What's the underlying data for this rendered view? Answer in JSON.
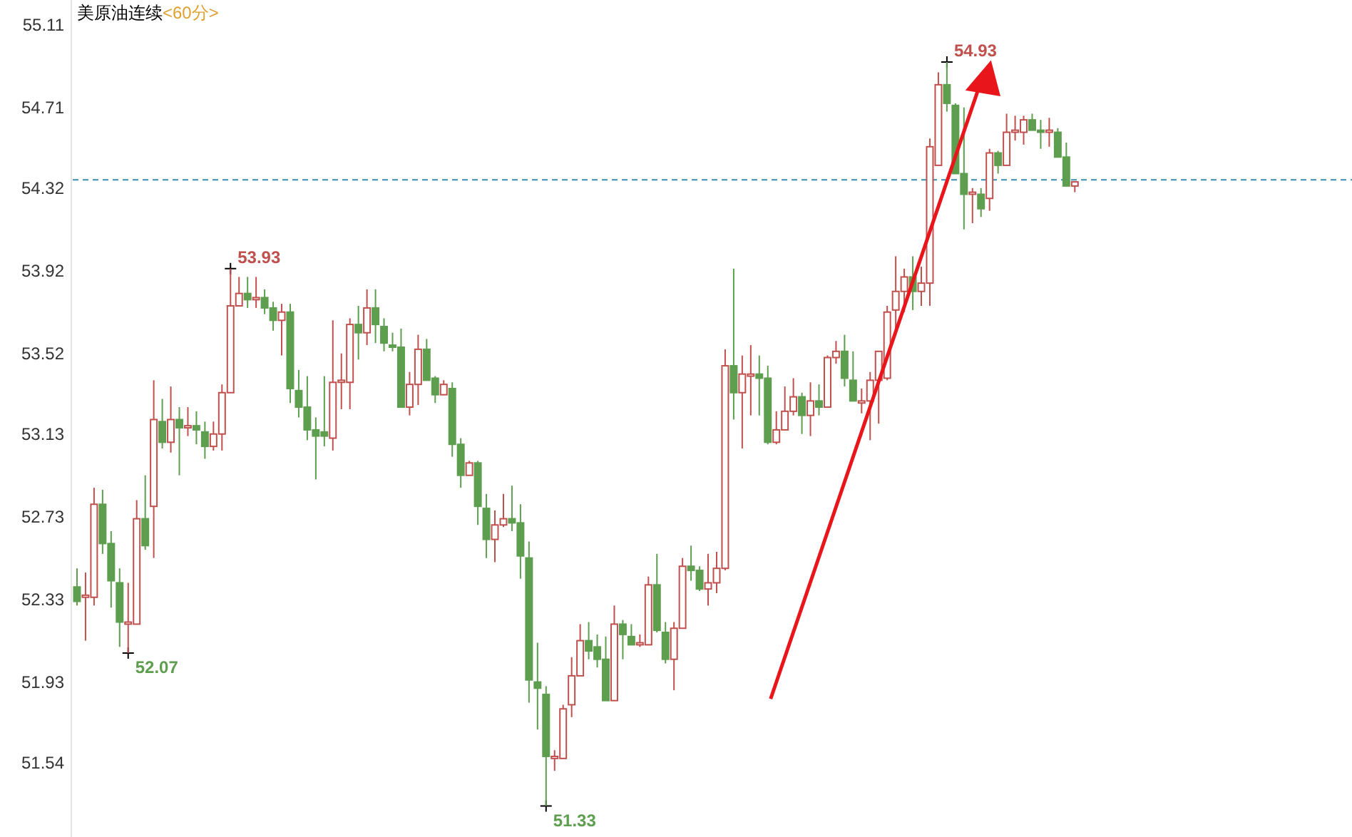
{
  "chart_data": {
    "type": "candlestick",
    "title": "美原油连续",
    "subtitle": "<60分>",
    "categories": [
      null,
      null,
      null,
      null,
      null,
      null,
      null,
      null,
      null,
      null,
      null,
      null,
      null,
      null,
      null,
      null,
      null,
      null,
      null,
      null,
      null,
      null,
      null,
      null,
      null,
      null,
      null,
      null,
      null,
      null,
      null,
      null,
      null,
      null,
      null,
      null,
      null,
      null,
      null,
      null,
      null,
      null,
      null,
      null,
      null,
      null,
      null,
      null,
      null,
      null,
      null,
      null,
      null,
      null,
      null,
      null,
      null,
      null,
      null,
      null,
      null,
      null,
      null,
      null,
      null,
      null,
      null,
      null,
      null,
      null,
      null,
      null,
      null,
      null,
      null,
      null,
      null,
      null,
      null,
      null,
      null,
      null,
      null,
      null,
      null,
      null,
      null,
      null,
      null,
      null,
      null,
      null,
      null,
      null,
      null,
      null,
      null,
      null,
      null,
      null,
      null,
      null,
      null,
      null,
      null,
      null,
      null,
      null,
      null,
      null,
      null,
      null,
      null,
      null,
      null,
      null,
      null,
      null
    ],
    "ohlc": [
      [
        52.39,
        52.48,
        52.3,
        52.32
      ],
      [
        52.34,
        52.46,
        52.13,
        52.35
      ],
      [
        52.34,
        52.87,
        52.3,
        52.79
      ],
      [
        52.79,
        52.86,
        52.55,
        52.6
      ],
      [
        52.6,
        52.66,
        52.29,
        52.42
      ],
      [
        52.41,
        52.48,
        52.1,
        52.22
      ],
      [
        52.21,
        52.41,
        52.07,
        52.22
      ],
      [
        52.21,
        52.81,
        52.21,
        52.72
      ],
      [
        52.72,
        52.93,
        52.57,
        52.59
      ],
      [
        52.78,
        53.39,
        52.53,
        53.2
      ],
      [
        53.19,
        53.3,
        53.06,
        53.09
      ],
      [
        53.09,
        53.36,
        53.04,
        53.2
      ],
      [
        53.2,
        53.26,
        52.93,
        53.16
      ],
      [
        53.16,
        53.26,
        53.12,
        53.17
      ],
      [
        53.17,
        53.24,
        53.08,
        53.15
      ],
      [
        53.14,
        53.19,
        53.01,
        53.07
      ],
      [
        53.07,
        53.19,
        53.05,
        53.13
      ],
      [
        53.13,
        53.37,
        53.05,
        53.33
      ],
      [
        53.33,
        53.93,
        53.33,
        53.75
      ],
      [
        53.75,
        53.89,
        53.75,
        53.81
      ],
      [
        53.81,
        53.89,
        53.74,
        53.78
      ],
      [
        53.78,
        53.89,
        53.74,
        53.79
      ],
      [
        53.79,
        53.83,
        53.71,
        53.74
      ],
      [
        53.74,
        53.77,
        53.63,
        53.68
      ],
      [
        53.68,
        53.76,
        53.51,
        53.72
      ],
      [
        53.72,
        53.76,
        53.28,
        53.35
      ],
      [
        53.34,
        53.44,
        53.21,
        53.26
      ],
      [
        53.26,
        53.41,
        53.1,
        53.15
      ],
      [
        53.15,
        53.21,
        52.91,
        53.12
      ],
      [
        53.14,
        53.41,
        53.07,
        53.12
      ],
      [
        53.11,
        53.68,
        53.05,
        53.38
      ],
      [
        53.38,
        53.52,
        53.25,
        53.39
      ],
      [
        53.38,
        53.69,
        53.25,
        53.66
      ],
      [
        53.66,
        53.75,
        53.49,
        53.62
      ],
      [
        53.62,
        53.83,
        53.56,
        53.74
      ],
      [
        53.74,
        53.83,
        53.57,
        53.66
      ],
      [
        53.65,
        53.69,
        53.53,
        53.57
      ],
      [
        53.56,
        53.62,
        53.53,
        53.55
      ],
      [
        53.55,
        53.64,
        53.26,
        53.26
      ],
      [
        53.26,
        53.43,
        53.22,
        53.37
      ],
      [
        53.37,
        53.61,
        53.27,
        53.54
      ],
      [
        53.54,
        53.59,
        53.39,
        53.39
      ],
      [
        53.4,
        53.41,
        53.28,
        53.32
      ],
      [
        53.32,
        53.39,
        53.32,
        53.37
      ],
      [
        53.35,
        53.38,
        53.02,
        53.08
      ],
      [
        53.08,
        53.11,
        52.87,
        52.93
      ],
      [
        52.93,
        53.0,
        52.93,
        52.99
      ],
      [
        52.99,
        53.0,
        52.69,
        52.78
      ],
      [
        52.77,
        52.84,
        52.53,
        52.62
      ],
      [
        52.62,
        52.76,
        52.51,
        52.69
      ],
      [
        52.69,
        52.84,
        52.68,
        52.72
      ],
      [
        52.72,
        52.88,
        52.66,
        52.7
      ],
      [
        52.7,
        52.79,
        52.43,
        52.54
      ],
      [
        52.53,
        52.61,
        51.83,
        51.94
      ],
      [
        51.93,
        52.12,
        51.7,
        51.9
      ],
      [
        51.87,
        51.91,
        51.33,
        51.57
      ],
      [
        51.56,
        51.6,
        51.5,
        51.57
      ],
      [
        51.56,
        51.82,
        51.56,
        51.8
      ],
      [
        51.82,
        52.05,
        51.76,
        51.96
      ],
      [
        51.96,
        52.21,
        51.96,
        52.13
      ],
      [
        52.13,
        52.22,
        52.04,
        52.08
      ],
      [
        52.1,
        52.16,
        52.0,
        52.04
      ],
      [
        52.04,
        52.15,
        51.84,
        51.84
      ],
      [
        51.84,
        52.3,
        51.84,
        52.21
      ],
      [
        52.21,
        52.23,
        52.04,
        52.16
      ],
      [
        52.15,
        52.21,
        52.11,
        52.11
      ],
      [
        52.11,
        52.16,
        52.1,
        52.12
      ],
      [
        52.11,
        52.44,
        52.11,
        52.4
      ],
      [
        52.4,
        52.55,
        52.17,
        52.18
      ],
      [
        52.17,
        52.22,
        52.02,
        52.04
      ],
      [
        52.04,
        52.22,
        51.89,
        52.19
      ],
      [
        52.19,
        52.53,
        52.19,
        52.49
      ],
      [
        52.49,
        52.59,
        52.42,
        52.47
      ],
      [
        52.47,
        52.49,
        52.37,
        52.38
      ],
      [
        52.38,
        52.55,
        52.3,
        52.41
      ],
      [
        52.41,
        52.56,
        52.36,
        52.48
      ],
      [
        52.48,
        53.54,
        52.47,
        53.46
      ],
      [
        53.46,
        53.93,
        53.2,
        53.33
      ],
      [
        53.33,
        53.51,
        53.06,
        53.42
      ],
      [
        53.41,
        53.56,
        53.22,
        53.42
      ],
      [
        53.42,
        53.51,
        53.22,
        53.4
      ],
      [
        53.4,
        53.46,
        53.08,
        53.09
      ],
      [
        53.09,
        53.24,
        53.08,
        53.15
      ],
      [
        53.15,
        53.36,
        53.15,
        53.24
      ],
      [
        53.24,
        53.4,
        53.22,
        53.31
      ],
      [
        53.31,
        53.33,
        53.13,
        53.22
      ],
      [
        53.22,
        53.38,
        53.12,
        53.29
      ],
      [
        53.29,
        53.37,
        53.22,
        53.26
      ],
      [
        53.26,
        53.51,
        53.26,
        53.5
      ],
      [
        53.5,
        53.58,
        53.47,
        53.53
      ],
      [
        53.53,
        53.61,
        53.36,
        53.4
      ],
      [
        53.39,
        53.53,
        53.29,
        53.29
      ],
      [
        53.28,
        53.35,
        53.23,
        53.29
      ],
      [
        53.29,
        53.43,
        53.1,
        53.39
      ],
      [
        53.39,
        53.53,
        53.18,
        53.53
      ],
      [
        53.4,
        53.75,
        53.39,
        53.72
      ],
      [
        53.73,
        53.99,
        53.63,
        53.82
      ],
      [
        53.82,
        53.93,
        53.72,
        53.89
      ],
      [
        53.89,
        53.99,
        53.73,
        53.82
      ],
      [
        53.82,
        53.94,
        53.75,
        53.86
      ],
      [
        53.86,
        54.56,
        53.75,
        54.52
      ],
      [
        54.43,
        54.88,
        54.43,
        54.82
      ],
      [
        54.82,
        54.93,
        54.69,
        54.73
      ],
      [
        54.72,
        54.73,
        54.39,
        54.39
      ],
      [
        54.39,
        54.71,
        54.12,
        54.29
      ],
      [
        54.29,
        54.32,
        54.15,
        54.3
      ],
      [
        54.29,
        54.32,
        54.18,
        54.22
      ],
      [
        54.27,
        54.51,
        54.21,
        54.49
      ],
      [
        54.49,
        54.5,
        54.39,
        54.43
      ],
      [
        54.43,
        54.68,
        54.43,
        54.59
      ],
      [
        54.59,
        54.67,
        54.55,
        54.6
      ],
      [
        54.59,
        54.67,
        54.53,
        54.65
      ],
      [
        54.65,
        54.68,
        54.6,
        54.6
      ],
      [
        54.6,
        54.65,
        54.51,
        54.59
      ],
      [
        54.59,
        54.66,
        54.52,
        54.6
      ],
      [
        54.59,
        54.61,
        54.47,
        54.47
      ],
      [
        54.47,
        54.54,
        54.33,
        54.33
      ],
      [
        54.33,
        54.35,
        54.3,
        54.35
      ]
    ],
    "colors": [
      "#5e9e4f",
      "#c0504d",
      "#c0504d",
      "#5e9e4f",
      "#5e9e4f",
      "#5e9e4f",
      "#c0504d",
      "#c0504d",
      "#5e9e4f",
      "#c0504d",
      "#5e9e4f",
      "#c0504d",
      "#5e9e4f",
      "#c0504d",
      "#5e9e4f",
      "#5e9e4f",
      "#c0504d",
      "#c0504d",
      "#c0504d",
      "#c0504d",
      "#5e9e4f",
      "#c0504d",
      "#5e9e4f",
      "#5e9e4f",
      "#c0504d",
      "#5e9e4f",
      "#5e9e4f",
      "#5e9e4f",
      "#5e9e4f",
      "#5e9e4f",
      "#c0504d",
      "#c0504d",
      "#c0504d",
      "#5e9e4f",
      "#c0504d",
      "#5e9e4f",
      "#5e9e4f",
      "#5e9e4f",
      "#5e9e4f",
      "#c0504d",
      "#c0504d",
      "#5e9e4f",
      "#5e9e4f",
      "#c0504d",
      "#5e9e4f",
      "#5e9e4f",
      "#c0504d",
      "#5e9e4f",
      "#5e9e4f",
      "#c0504d",
      "#c0504d",
      "#5e9e4f",
      "#5e9e4f",
      "#5e9e4f",
      "#5e9e4f",
      "#5e9e4f",
      "#c0504d",
      "#c0504d",
      "#c0504d",
      "#c0504d",
      "#5e9e4f",
      "#5e9e4f",
      "#5e9e4f",
      "#c0504d",
      "#5e9e4f",
      "#5e9e4f",
      "#c0504d",
      "#c0504d",
      "#5e9e4f",
      "#5e9e4f",
      "#c0504d",
      "#c0504d",
      "#5e9e4f",
      "#5e9e4f",
      "#c0504d",
      "#c0504d",
      "#c0504d",
      "#5e9e4f",
      "#c0504d",
      "#c0504d",
      "#5e9e4f",
      "#5e9e4f",
      "#c0504d",
      "#c0504d",
      "#c0504d",
      "#5e9e4f",
      "#c0504d",
      "#5e9e4f",
      "#c0504d",
      "#c0504d",
      "#5e9e4f",
      "#5e9e4f",
      "#c0504d",
      "#c0504d",
      "#c0504d",
      "#c0504d",
      "#c0504d",
      "#c0504d",
      "#5e9e4f",
      "#c0504d",
      "#c0504d",
      "#c0504d",
      "#5e9e4f",
      "#5e9e4f",
      "#5e9e4f",
      "#c0504d",
      "#5e9e4f",
      "#c0504d",
      "#5e9e4f",
      "#c0504d",
      "#c0504d",
      "#c0504d",
      "#5e9e4f",
      "#5e9e4f",
      "#c0504d",
      "#5e9e4f",
      "#5e9e4f",
      "#c0504d"
    ],
    "ylim": [
      51.18,
      55.23
    ],
    "yticks": [
      55.11,
      54.71,
      54.32,
      53.92,
      53.52,
      53.13,
      52.73,
      52.33,
      51.93,
      51.54
    ],
    "ref_lines": [
      {
        "axis": "y",
        "value": 54.36,
        "color": "#3a8fb0",
        "line_style": "dashed"
      }
    ],
    "annotations": [
      "53.93",
      "52.07",
      "51.33",
      "54.93"
    ],
    "grid": false
  }
}
